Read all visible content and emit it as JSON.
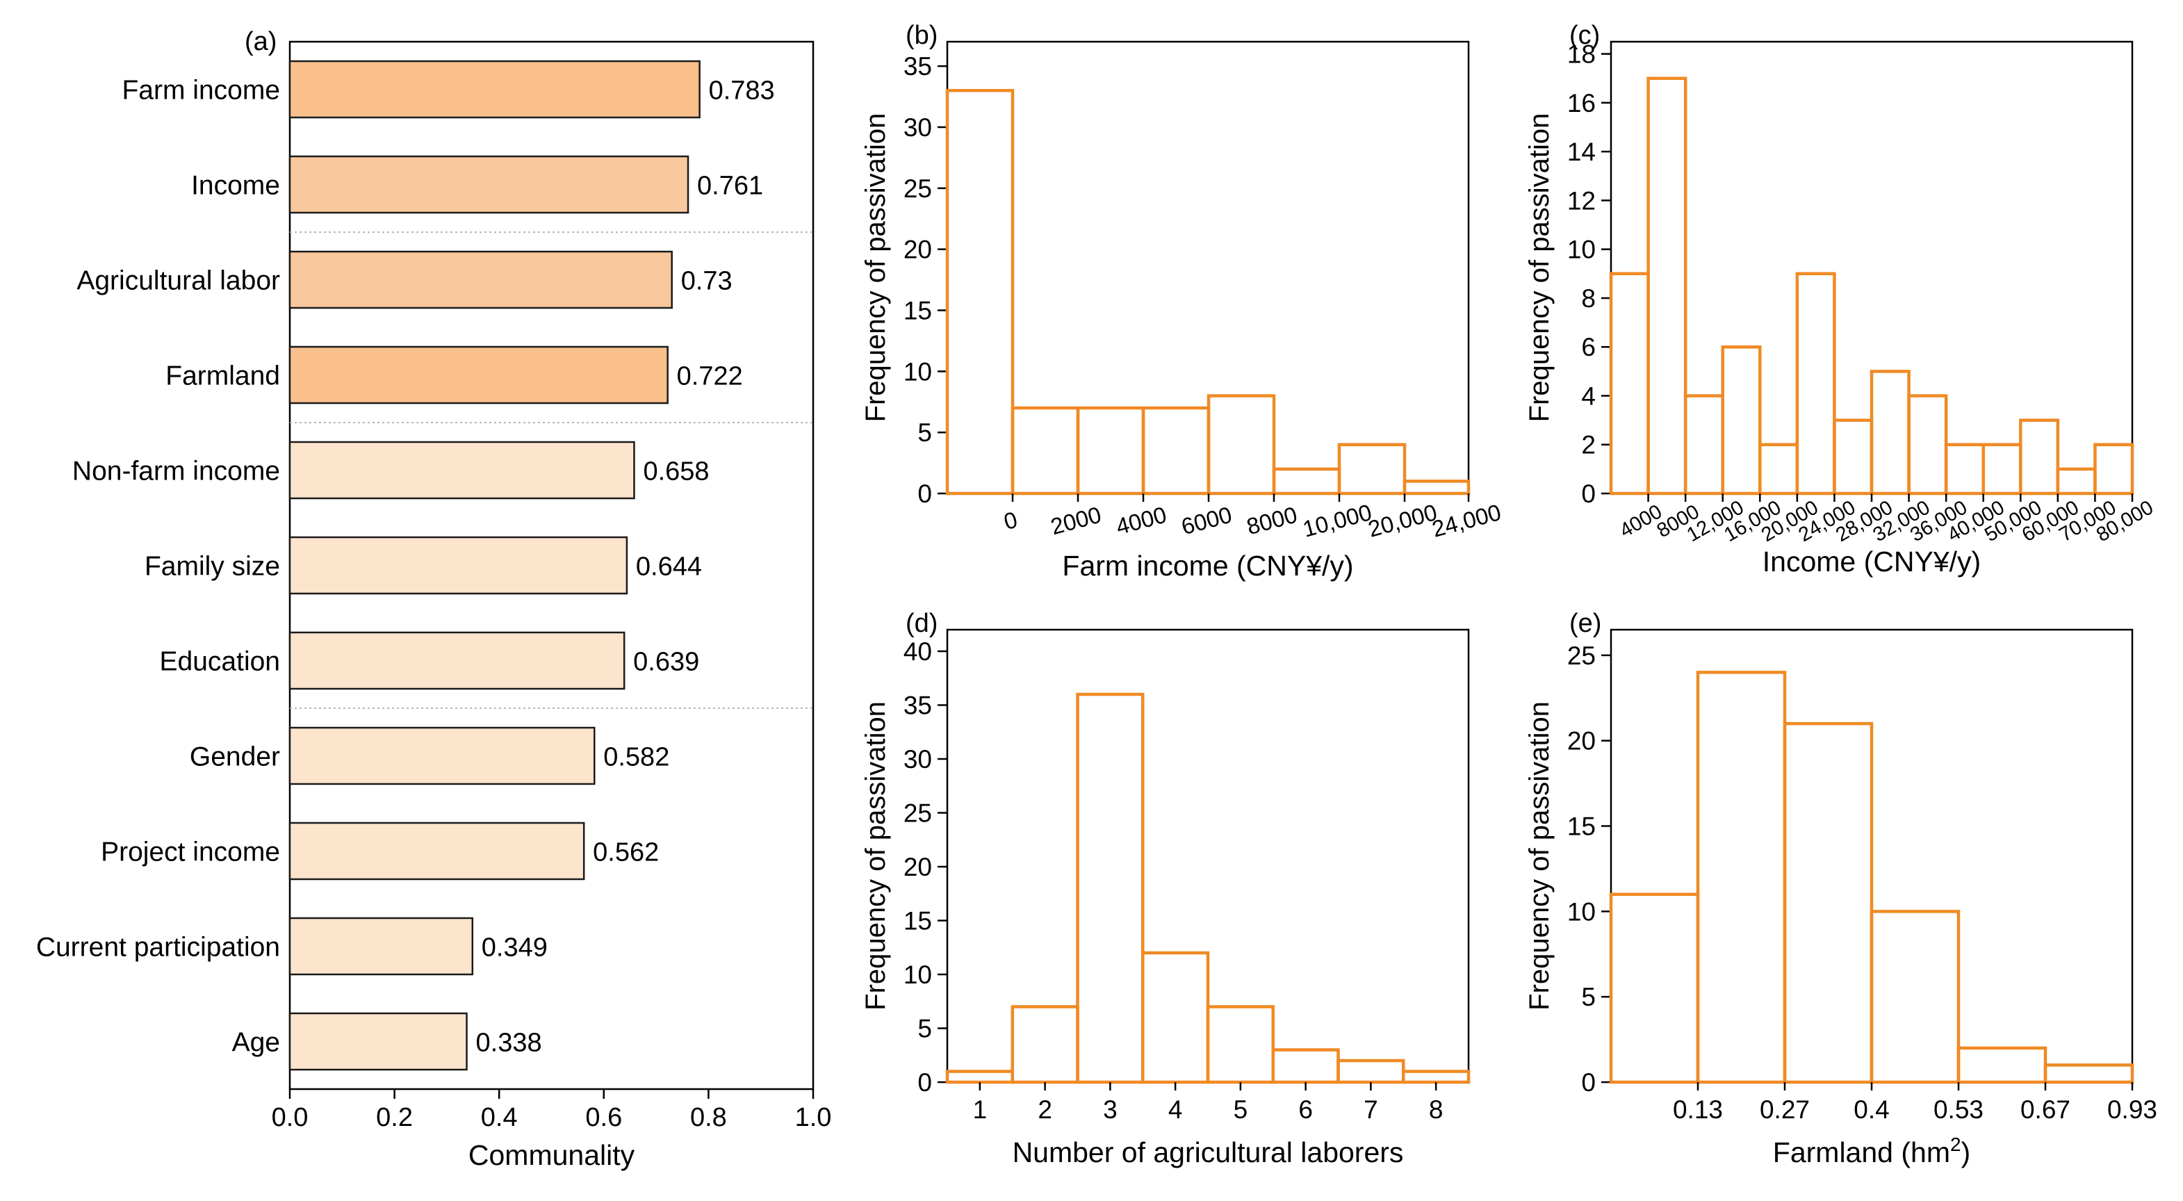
{
  "chart_data": [
    {
      "panel": "(a)",
      "type": "bar",
      "orientation": "horizontal",
      "categories": [
        "Farm income",
        "Income",
        "Agricultural labor",
        "Farmland",
        "Non-farm income",
        "Family size",
        "Education",
        "Gender",
        "Project income",
        "Current participation",
        "Age"
      ],
      "values": [
        0.783,
        0.761,
        0.73,
        0.722,
        0.658,
        0.644,
        0.639,
        0.582,
        0.562,
        0.349,
        0.338
      ],
      "value_labels": [
        "0.783",
        "0.761",
        "0.73",
        "0.722",
        "0.658",
        "0.644",
        "0.639",
        "0.582",
        "0.562",
        "0.349",
        "0.338"
      ],
      "bar_colors": [
        "#f9c08e",
        "#fac89d",
        "#fac89d",
        "#f9c08e",
        "#fde4cd",
        "#fde4cd",
        "#fde4cd",
        "#fde4cd",
        "#fde4cd",
        "#fde4cd",
        "#fde4cd"
      ],
      "xlabel": "Communality",
      "xlim": [
        0.0,
        1.0
      ],
      "xticks": [
        "0.0",
        "0.2",
        "0.4",
        "0.6",
        "0.8",
        "1.0"
      ]
    },
    {
      "panel": "(b)",
      "type": "bar",
      "histogram": true,
      "xlabel": "Farm income (CNY¥/y)",
      "ylabel": "Frequency of passivation",
      "ylim": [
        0,
        37
      ],
      "yticks": [
        "0",
        "5",
        "10",
        "15",
        "20",
        "25",
        "30",
        "35"
      ],
      "xtick_labels": [
        "0",
        "2000",
        "4000",
        "6000",
        "8000",
        "10,000",
        "20,000",
        "24,000"
      ],
      "values": [
        33,
        7,
        7,
        7,
        8,
        2,
        4,
        1
      ]
    },
    {
      "panel": "(c)",
      "type": "bar",
      "histogram": true,
      "xlabel": "Income (CNY¥/y)",
      "ylabel": "Frequency of passivation",
      "ylim": [
        0,
        18.5
      ],
      "yticks": [
        "0",
        "2",
        "4",
        "6",
        "8",
        "10",
        "12",
        "14",
        "16",
        "18"
      ],
      "xtick_labels": [
        "4000",
        "8000",
        "12,000",
        "16,000",
        "20,000",
        "24,000",
        "28,000",
        "32,000",
        "36,000",
        "40,000",
        "50,000",
        "60,000",
        "70,000",
        "80,000"
      ],
      "values": [
        9,
        17,
        4,
        6,
        2,
        9,
        3,
        5,
        4,
        2,
        2,
        3,
        1,
        2
      ]
    },
    {
      "panel": "(d)",
      "type": "bar",
      "histogram": true,
      "xlabel": "Number of agricultural laborers",
      "ylabel": "Frequency of passivation",
      "ylim": [
        0,
        42
      ],
      "yticks": [
        "0",
        "5",
        "10",
        "15",
        "20",
        "25",
        "30",
        "35",
        "40"
      ],
      "categories": [
        "1",
        "2",
        "3",
        "4",
        "5",
        "6",
        "7",
        "8"
      ],
      "values": [
        1,
        7,
        36,
        12,
        7,
        3,
        2,
        1
      ]
    },
    {
      "panel": "(e)",
      "type": "bar",
      "histogram": true,
      "xlabel": "Farmland (hm",
      "xlabel_sup": "2",
      "xlabel_end": ")",
      "ylabel": "Frequency of passivation",
      "ylim": [
        0,
        26.5
      ],
      "yticks": [
        "0",
        "5",
        "10",
        "15",
        "20",
        "25"
      ],
      "xtick_labels": [
        "0.13",
        "0.27",
        "0.4",
        "0.53",
        "0.67",
        "0.93"
      ],
      "values": [
        11,
        24,
        21,
        10,
        2,
        1
      ]
    }
  ],
  "colors": {
    "histogram_stroke": "#f08a24",
    "axis": "#000000",
    "separator": "#b5b5b5"
  }
}
